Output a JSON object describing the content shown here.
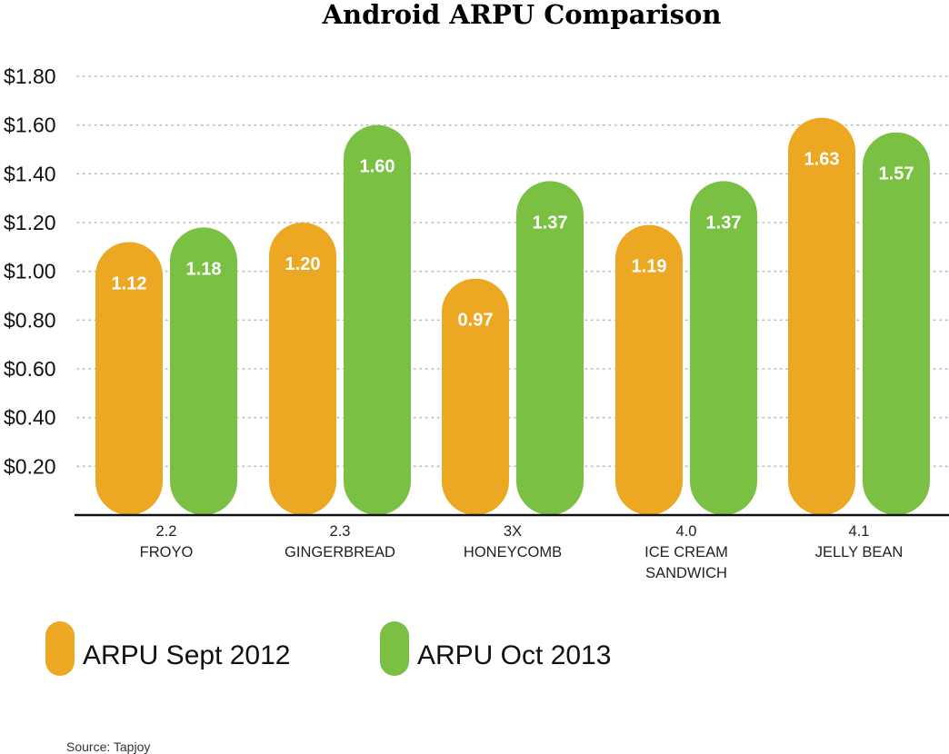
{
  "chart_data": {
    "type": "bar",
    "title": "Android ARPU Comparison",
    "y_tick_labels": [
      "$0.20",
      "$0.40",
      "$0.60",
      "$0.80",
      "$1.00",
      "$1.20",
      "$1.40",
      "$1.60",
      "$1.80"
    ],
    "ylim": [
      0,
      1.8
    ],
    "grid": true,
    "legend_position": "bottom-left",
    "categories": [
      {
        "line1": "2.2",
        "line2": "FROYO",
        "line3": ""
      },
      {
        "line1": "2.3",
        "line2": "GINGERBREAD",
        "line3": ""
      },
      {
        "line1": "3X",
        "line2": "HONEYCOMB",
        "line3": ""
      },
      {
        "line1": "4.0",
        "line2": "ICE CREAM",
        "line3": "SANDWICH"
      },
      {
        "line1": "4.1",
        "line2": "JELLY BEAN",
        "line3": ""
      }
    ],
    "series": [
      {
        "name": "ARPU Sept 2012",
        "color": "#eca823",
        "values": [
          1.12,
          1.2,
          0.97,
          1.19,
          1.63
        ],
        "labels": [
          "1.12",
          "1.20",
          "0.97",
          "1.19",
          "1.63"
        ]
      },
      {
        "name": "ARPU Oct 2013",
        "color": "#7ac143",
        "values": [
          1.18,
          1.6,
          1.37,
          1.37,
          1.57
        ],
        "labels": [
          "1.18",
          "1.60",
          "1.37",
          "1.37",
          "1.57"
        ]
      }
    ],
    "source": "Source: Tapjoy"
  }
}
